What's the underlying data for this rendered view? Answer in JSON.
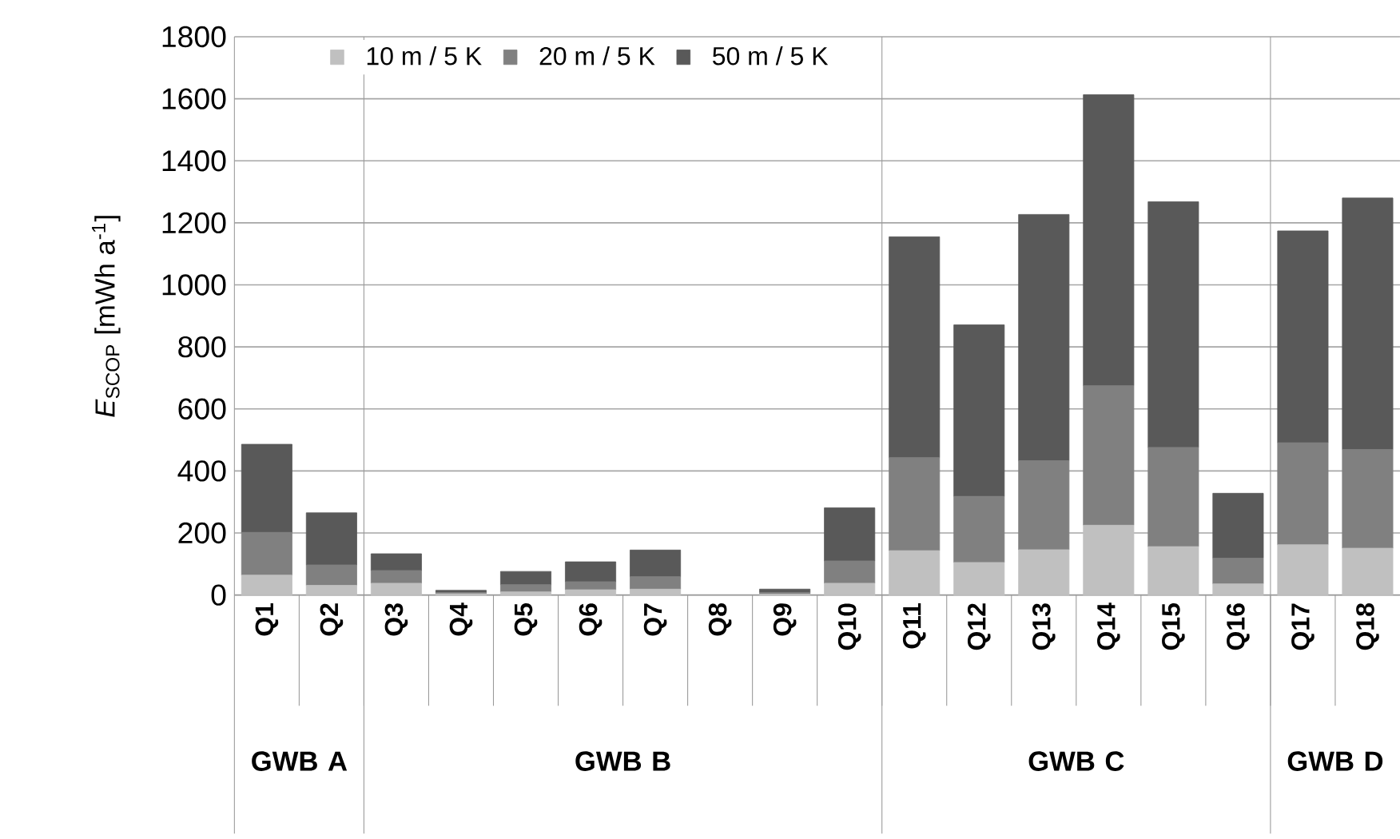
{
  "chart_data": {
    "type": "bar",
    "stacked": true,
    "ylabel": "*E*$_{SCOP}$ [mWh a$^{-1}$]",
    "categories": [
      "Q1",
      "Q2",
      "Q3",
      "Q4",
      "Q5",
      "Q6",
      "Q7",
      "Q8",
      "Q9",
      "Q10",
      "Q11",
      "Q12",
      "Q13",
      "Q14",
      "Q15",
      "Q16",
      "Q17",
      "Q18"
    ],
    "series": [
      {
        "name": "10 m / 5 K",
        "color": "#c0c0c0",
        "values": [
          64,
          31,
          38,
          4,
          10,
          17,
          19,
          0,
          3,
          38,
          143,
          105,
          146,
          225,
          156,
          36,
          162,
          151
        ]
      },
      {
        "name": "20 m / 5 K",
        "color": "#808080",
        "values": [
          138,
          66,
          41,
          4,
          23,
          26,
          40,
          0,
          5,
          72,
          300,
          213,
          287,
          450,
          320,
          83,
          329,
          318
        ]
      },
      {
        "name": "50 m / 5 K",
        "color": "#595959",
        "values": [
          284,
          168,
          54,
          7,
          43,
          64,
          86,
          0,
          11,
          171,
          712,
          553,
          794,
          938,
          792,
          209,
          683,
          811
        ]
      }
    ],
    "annotations": [
      "GWB A",
      "GWB B",
      "GWB C",
      "GWB D"
    ],
    "ylim": [
      0,
      1800
    ],
    "yticks": [
      0,
      200,
      400,
      600,
      800,
      1000,
      1200,
      1400,
      1600,
      1800
    ],
    "grid": "y",
    "legend": "top"
  }
}
